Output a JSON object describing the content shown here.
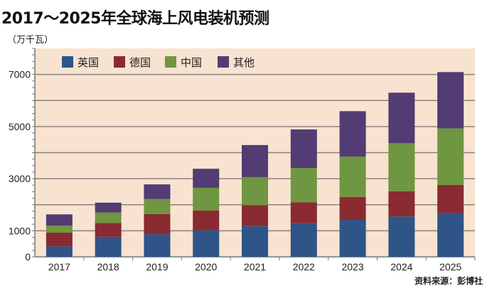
{
  "chart_data": {
    "type": "bar",
    "stacked": true,
    "title": "2017～2025年全球海上风电装机预测",
    "unit_label": "（万千瓦）",
    "source": "资料来源：彭博社",
    "categories": [
      "2017",
      "2018",
      "2019",
      "2020",
      "2021",
      "2022",
      "2023",
      "2024",
      "2025"
    ],
    "series": [
      {
        "name": "英国",
        "color": "#2f5488",
        "values": [
          400,
          770,
          870,
          1020,
          1180,
          1290,
          1420,
          1550,
          1680
        ]
      },
      {
        "name": "德国",
        "color": "#8a2a31",
        "values": [
          530,
          530,
          770,
          760,
          800,
          800,
          880,
          970,
          1080
        ]
      },
      {
        "name": "中国",
        "color": "#6f9640",
        "values": [
          270,
          400,
          580,
          870,
          1080,
          1320,
          1550,
          1840,
          2170
        ]
      },
      {
        "name": "其他",
        "color": "#533b73",
        "values": [
          430,
          380,
          560,
          730,
          1230,
          1480,
          1740,
          1940,
          2160
        ]
      }
    ],
    "yticks": [
      0,
      1000,
      3000,
      5000,
      7000
    ],
    "ylim": [
      0,
      8000
    ],
    "grid": true,
    "gridlines": [
      1000,
      2000,
      3000,
      4000,
      5000,
      6000,
      7000
    ],
    "legend_position": "top-left",
    "background": "#f8e2d0"
  }
}
